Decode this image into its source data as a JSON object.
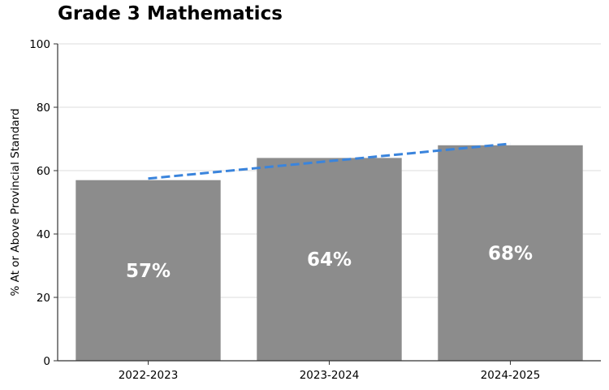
{
  "chart_data": {
    "type": "bar",
    "title": "Grade 3 Mathematics",
    "xlabel": "",
    "ylabel": "% At or Above Provincial Standard",
    "categories": [
      "2022-2023",
      "2023-2024",
      "2024-2025"
    ],
    "values": [
      57,
      64,
      68
    ],
    "data_labels": [
      "57%",
      "64%",
      "68%"
    ],
    "ylim": [
      0,
      100
    ],
    "yticks": [
      0,
      20,
      40,
      60,
      80,
      100
    ],
    "grid": "horizontal",
    "trendline": {
      "style": "dashed",
      "start": 57.5,
      "end": 68.5
    },
    "colors": {
      "bar": "#8c8c8c",
      "trend": "#3a84dc",
      "grid": "#dddddd",
      "axis": "#333333"
    }
  }
}
